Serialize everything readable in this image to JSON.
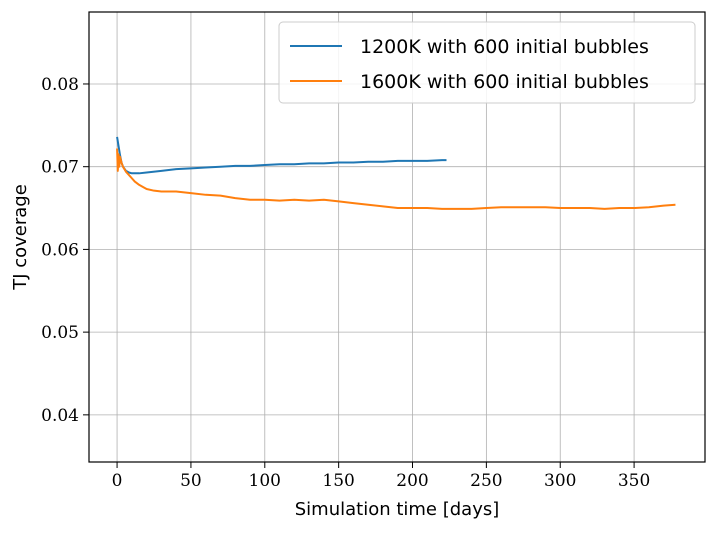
{
  "chart_data": {
    "type": "line",
    "title": "",
    "xlabel": "Simulation time [days]",
    "ylabel": "TJ coverage",
    "xlim": [
      -19,
      398
    ],
    "ylim": [
      0.0343,
      0.0887
    ],
    "xticks": [
      0,
      50,
      100,
      150,
      200,
      250,
      300,
      350
    ],
    "yticks": [
      0.04,
      0.05,
      0.06,
      0.07,
      0.08
    ],
    "xtick_labels": [
      "0",
      "50",
      "100",
      "150",
      "200",
      "250",
      "300",
      "350"
    ],
    "ytick_labels": [
      "0.04",
      "0.05",
      "0.06",
      "0.07",
      "0.08"
    ],
    "grid": true,
    "legend_position": "top-right",
    "series": [
      {
        "name": "1200K with 600 initial bubbles",
        "color": "#1f77b4",
        "x": [
          0,
          1,
          2,
          3,
          4,
          6,
          8,
          10,
          15,
          20,
          30,
          40,
          50,
          60,
          70,
          80,
          90,
          100,
          110,
          120,
          130,
          140,
          150,
          160,
          170,
          180,
          190,
          200,
          210,
          220,
          223
        ],
        "y": [
          0.0736,
          0.0725,
          0.0714,
          0.0705,
          0.07,
          0.0695,
          0.0693,
          0.0692,
          0.0692,
          0.0693,
          0.0695,
          0.0697,
          0.0698,
          0.0699,
          0.07,
          0.0701,
          0.0701,
          0.0702,
          0.0703,
          0.0703,
          0.0704,
          0.0704,
          0.0705,
          0.0705,
          0.0706,
          0.0706,
          0.0707,
          0.0707,
          0.0707,
          0.0708,
          0.0708
        ]
      },
      {
        "name": "1600K with 600 initial bubbles",
        "color": "#ff7f0e",
        "x": [
          0,
          0.5,
          1,
          1.5,
          2,
          3,
          4,
          6,
          8,
          10,
          12,
          15,
          18,
          20,
          25,
          30,
          40,
          50,
          60,
          70,
          80,
          90,
          100,
          110,
          120,
          130,
          140,
          150,
          160,
          170,
          180,
          190,
          200,
          210,
          220,
          230,
          240,
          250,
          260,
          270,
          280,
          290,
          300,
          310,
          320,
          330,
          340,
          350,
          360,
          370,
          378
        ],
        "y": [
          0.0722,
          0.0695,
          0.0715,
          0.07,
          0.0712,
          0.0705,
          0.07,
          0.0694,
          0.069,
          0.0686,
          0.0682,
          0.0678,
          0.0675,
          0.0673,
          0.0671,
          0.067,
          0.067,
          0.0668,
          0.0666,
          0.0665,
          0.0662,
          0.066,
          0.066,
          0.0659,
          0.066,
          0.0659,
          0.066,
          0.0658,
          0.0656,
          0.0654,
          0.0652,
          0.065,
          0.065,
          0.065,
          0.0649,
          0.0649,
          0.0649,
          0.065,
          0.0651,
          0.0651,
          0.0651,
          0.0651,
          0.065,
          0.065,
          0.065,
          0.0649,
          0.065,
          0.065,
          0.0651,
          0.0653,
          0.0654
        ]
      }
    ]
  }
}
